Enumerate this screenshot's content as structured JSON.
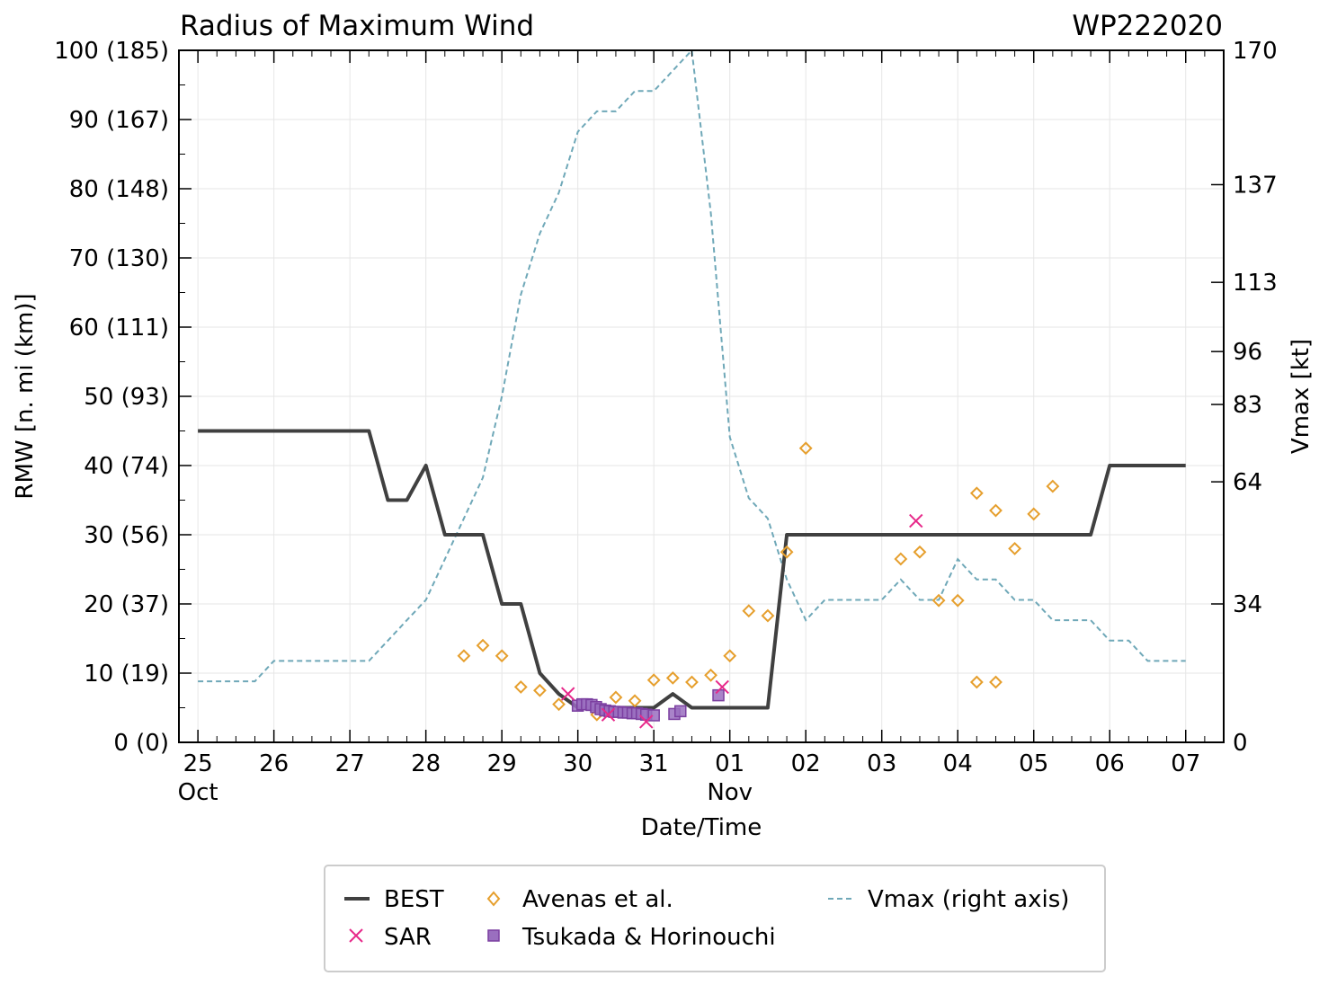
{
  "chart_data": {
    "type": "line",
    "title": "Radius of Maximum Wind",
    "storm_id": "WP222020",
    "xlabel": "Date/Time",
    "ylabel": "RMW [n. mi (km)]",
    "ylabel_right": "Vmax [kt]",
    "xlim": [
      -0.25,
      13.5
    ],
    "ylim": [
      0,
      100
    ],
    "ylim_right": [
      0,
      170
    ],
    "x_ticks": [
      {
        "x": 0,
        "label": "25"
      },
      {
        "x": 1,
        "label": "26"
      },
      {
        "x": 2,
        "label": "27"
      },
      {
        "x": 3,
        "label": "28"
      },
      {
        "x": 4,
        "label": "29"
      },
      {
        "x": 5,
        "label": "30"
      },
      {
        "x": 6,
        "label": "31"
      },
      {
        "x": 7,
        "label": "01"
      },
      {
        "x": 8,
        "label": "02"
      },
      {
        "x": 9,
        "label": "03"
      },
      {
        "x": 10,
        "label": "04"
      },
      {
        "x": 11,
        "label": "05"
      },
      {
        "x": 12,
        "label": "06"
      },
      {
        "x": 13,
        "label": "07"
      }
    ],
    "month_labels": [
      {
        "x": 0,
        "label": "Oct"
      },
      {
        "x": 7,
        "label": "Nov"
      }
    ],
    "y_ticks": [
      {
        "v": 0,
        "label": "0 (0)"
      },
      {
        "v": 10,
        "label": "10 (19)"
      },
      {
        "v": 20,
        "label": "20 (37)"
      },
      {
        "v": 30,
        "label": "30 (56)"
      },
      {
        "v": 40,
        "label": "40 (74)"
      },
      {
        "v": 50,
        "label": "50 (93)"
      },
      {
        "v": 60,
        "label": "60 (111)"
      },
      {
        "v": 70,
        "label": "70 (130)"
      },
      {
        "v": 80,
        "label": "80 (148)"
      },
      {
        "v": 90,
        "label": "90 (167)"
      },
      {
        "v": 100,
        "label": "100 (185)"
      }
    ],
    "y_ticks_right": [
      {
        "v": 0,
        "label": "0"
      },
      {
        "v": 34,
        "label": "34"
      },
      {
        "v": 64,
        "label": "64"
      },
      {
        "v": 83,
        "label": "83"
      },
      {
        "v": 96,
        "label": "96"
      },
      {
        "v": 113,
        "label": "113"
      },
      {
        "v": 137,
        "label": "137"
      },
      {
        "v": 170,
        "label": "170"
      }
    ],
    "legend": {
      "position": "below",
      "entries": [
        {
          "key": "best",
          "label": "BEST"
        },
        {
          "key": "sar",
          "label": "SAR"
        },
        {
          "key": "avenas",
          "label": "Avenas et al."
        },
        {
          "key": "tsukada",
          "label": "Tsukada & Horinouchi"
        },
        {
          "key": "vmax",
          "label": "Vmax (right axis)"
        }
      ]
    },
    "colors": {
      "best": "#404040",
      "sar": "#e7298a",
      "avenas": "#e69f2d",
      "tsukada": "#7b3fa0",
      "vmax": "#6fa8b8",
      "grid": "#e6e6e6"
    },
    "series": [
      {
        "name": "BEST",
        "key": "best",
        "axis": "left",
        "x": [
          0,
          2.25,
          2.5,
          2.75,
          3.0,
          3.25,
          3.75,
          4.0,
          4.25,
          4.5,
          4.75,
          5.0,
          5.25,
          5.5,
          5.75,
          6.0,
          6.25,
          6.5,
          6.75,
          7.0,
          7.25,
          7.5,
          7.75,
          8.0,
          8.5,
          9.0,
          9.5,
          10.0,
          10.5,
          11.0,
          11.5,
          11.75,
          12.0,
          12.5,
          13.0
        ],
        "values": [
          45,
          45,
          35,
          35,
          40,
          30,
          30,
          20,
          20,
          10,
          7,
          5,
          5,
          5,
          5,
          5,
          7,
          5,
          5,
          5,
          5,
          5,
          30,
          30,
          30,
          30,
          30,
          30,
          30,
          30,
          30,
          30,
          40,
          40,
          40
        ]
      },
      {
        "name": "Vmax (right axis)",
        "key": "vmax",
        "axis": "right",
        "x": [
          0,
          0.25,
          0.5,
          0.75,
          1.0,
          1.25,
          1.5,
          1.75,
          2.0,
          2.25,
          2.5,
          2.75,
          3.0,
          3.25,
          3.5,
          3.75,
          4.0,
          4.25,
          4.5,
          4.75,
          5.0,
          5.25,
          5.5,
          5.75,
          6.0,
          6.25,
          6.5,
          6.75,
          7.0,
          7.25,
          7.5,
          7.75,
          8.0,
          8.25,
          8.5,
          8.75,
          9.0,
          9.25,
          9.5,
          9.75,
          10.0,
          10.25,
          10.5,
          10.75,
          11.0,
          11.25,
          11.5,
          11.75,
          12.0,
          12.25,
          12.5,
          12.75,
          13.0
        ],
        "values": [
          15,
          15,
          15,
          15,
          20,
          20,
          20,
          20,
          20,
          20,
          25,
          30,
          35,
          45,
          55,
          65,
          85,
          110,
          125,
          135,
          150,
          155,
          155,
          160,
          160,
          165,
          170,
          130,
          75,
          60,
          55,
          40,
          30,
          35,
          35,
          35,
          35,
          40,
          35,
          35,
          45,
          40,
          40,
          35,
          35,
          30,
          30,
          30,
          25,
          25,
          20,
          20,
          20
        ]
      },
      {
        "name": "Avenas et al.",
        "key": "avenas",
        "axis": "left",
        "marker": "diamond",
        "x": [
          3.5,
          3.75,
          4.0,
          4.25,
          4.5,
          4.75,
          5.25,
          5.5,
          5.75,
          6.0,
          6.25,
          6.5,
          6.75,
          7.0,
          7.25,
          7.5,
          7.75,
          8.0,
          9.25,
          9.5,
          9.75,
          10.0,
          10.25,
          10.5,
          10.75,
          11.0,
          11.25,
          10.25,
          10.5
        ],
        "values": [
          12.5,
          14,
          12.5,
          8,
          7.5,
          5.5,
          4,
          6.5,
          6,
          9,
          9.3,
          8.7,
          9.7,
          12.5,
          19,
          18.3,
          27.5,
          42.5,
          26.5,
          27.5,
          20.5,
          20.5,
          36,
          33.5,
          28,
          33,
          37,
          8.7,
          8.7
        ]
      },
      {
        "name": "SAR",
        "key": "sar",
        "axis": "left",
        "marker": "x",
        "x": [
          4.87,
          5.4,
          5.9,
          6.9,
          9.45
        ],
        "values": [
          7,
          4,
          3,
          8,
          32
        ]
      },
      {
        "name": "Tsukada & Horinouchi",
        "key": "tsukada",
        "axis": "left",
        "marker": "square",
        "x": [
          5.0,
          5.06,
          5.12,
          5.18,
          5.24,
          5.3,
          5.36,
          5.42,
          5.48,
          5.54,
          5.6,
          5.66,
          5.72,
          5.78,
          5.84,
          5.9,
          6.0,
          6.27,
          6.35,
          6.85
        ],
        "values": [
          5.3,
          5.5,
          5.5,
          5.4,
          5.1,
          4.8,
          4.6,
          4.5,
          4.4,
          4.4,
          4.3,
          4.3,
          4.2,
          4.2,
          4.1,
          4.0,
          3.9,
          4.1,
          4.5,
          6.8
        ]
      }
    ]
  }
}
